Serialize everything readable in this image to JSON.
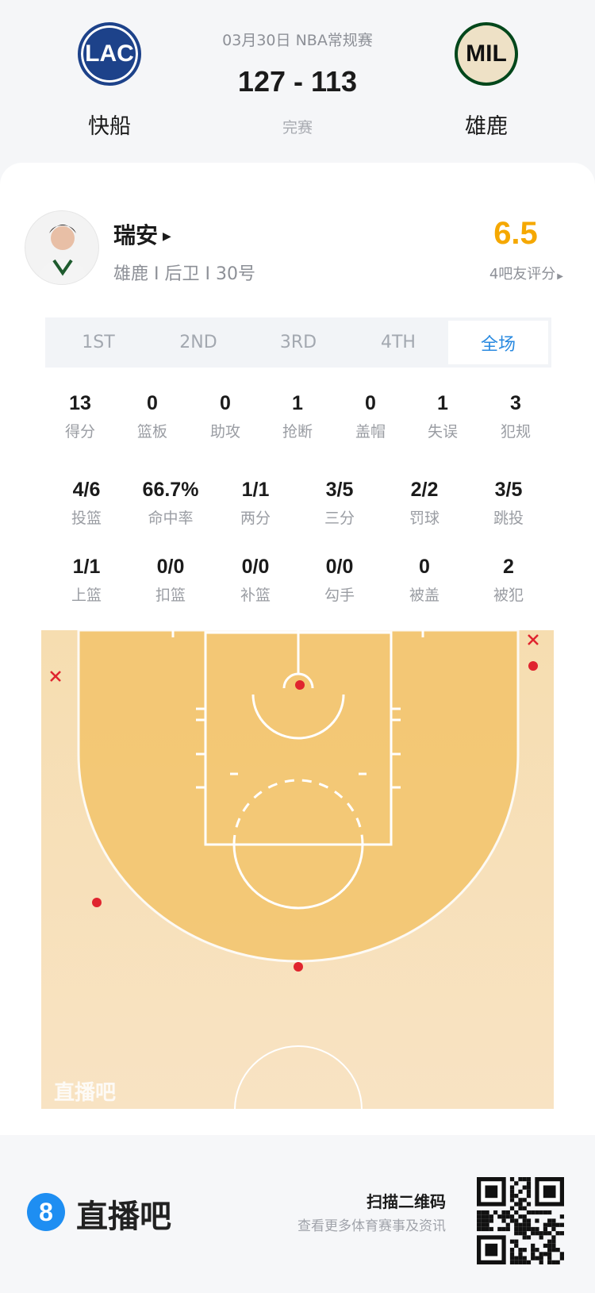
{
  "match": {
    "date_league": "03月30日 NBA常规赛",
    "score": "127 - 113",
    "status": "完赛",
    "home": {
      "abbr": "LAC",
      "name": "快船"
    },
    "away": {
      "abbr": "MIL",
      "name": "雄鹿"
    }
  },
  "player": {
    "name": "瑞安",
    "info": "雄鹿 I 后卫 I 30号",
    "rating": "6.5",
    "rating_label": "4吧友评分",
    "rating_color": "#f5a800"
  },
  "tabs": [
    {
      "label": "1ST"
    },
    {
      "label": "2ND"
    },
    {
      "label": "3RD"
    },
    {
      "label": "4TH"
    },
    {
      "label": "全场",
      "active": true
    }
  ],
  "stats_row1": [
    {
      "v": "13",
      "l": "得分"
    },
    {
      "v": "0",
      "l": "篮板"
    },
    {
      "v": "0",
      "l": "助攻"
    },
    {
      "v": "1",
      "l": "抢断"
    },
    {
      "v": "0",
      "l": "盖帽"
    },
    {
      "v": "1",
      "l": "失误"
    },
    {
      "v": "3",
      "l": "犯规"
    }
  ],
  "stats_row2": [
    {
      "v": "4/6",
      "l": "投篮"
    },
    {
      "v": "66.7%",
      "l": "命中率"
    },
    {
      "v": "1/1",
      "l": "两分"
    },
    {
      "v": "3/5",
      "l": "三分"
    },
    {
      "v": "2/2",
      "l": "罚球"
    },
    {
      "v": "3/5",
      "l": "跳投"
    }
  ],
  "stats_row3": [
    {
      "v": "1/1",
      "l": "上篮"
    },
    {
      "v": "0/0",
      "l": "扣篮"
    },
    {
      "v": "0/0",
      "l": "补篮"
    },
    {
      "v": "0/0",
      "l": "勾手"
    },
    {
      "v": "0",
      "l": "被盖"
    },
    {
      "v": "2",
      "l": "被犯"
    }
  ],
  "shot_chart": {
    "watermark": "直播吧",
    "shots": [
      "missed",
      "missed",
      "made",
      "made",
      "made",
      "made"
    ],
    "made_icon": "dot",
    "missed_icon": "x",
    "shot_color": "#e0242e"
  },
  "footer": {
    "brand": "直播吧",
    "brand_icon": "8",
    "qr_title": "扫描二维码",
    "qr_subtitle": "查看更多体育赛事及资讯"
  }
}
